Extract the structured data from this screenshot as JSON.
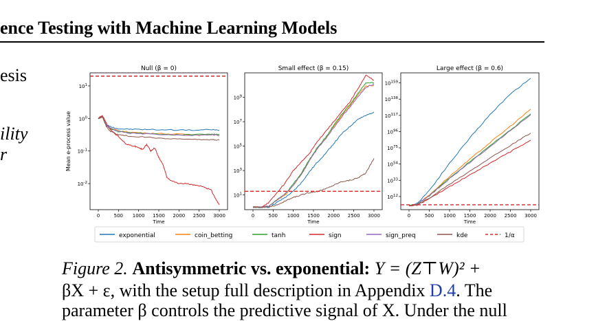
{
  "page": {
    "header_title": "ence Testing with Machine Learning Models",
    "left_margin_text": [
      "esis",
      "ility",
      "r"
    ]
  },
  "figure": {
    "legend": [
      {
        "label": "exponential",
        "color": "#1f77b4",
        "dash": false
      },
      {
        "label": "coin_betting",
        "color": "#ff7f0e",
        "dash": false
      },
      {
        "label": "tanh",
        "color": "#2ca02c",
        "dash": false
      },
      {
        "label": "sign",
        "color": "#d62728",
        "dash": false
      },
      {
        "label": "sign_preq",
        "color": "#9467bd",
        "dash": false
      },
      {
        "label": "kde",
        "color": "#8c564b",
        "dash": false
      },
      {
        "label": "1/α",
        "color": "#d62728",
        "dash": true
      }
    ],
    "ylabel": "Mean e-process value"
  },
  "chart_data": [
    {
      "type": "line",
      "title": "Null  (β = 0)",
      "xlabel": "Time",
      "ylabel": "Mean e-process value",
      "log_y": true,
      "xlim": [
        0,
        3000
      ],
      "ylim_log10": [
        -2.8,
        1.4
      ],
      "xticks": [
        0,
        500,
        1000,
        1500,
        2000,
        2500,
        3000
      ],
      "yticks": [
        {
          "v": 1,
          "label": "10^1"
        },
        {
          "v": 0,
          "label": "10^0"
        },
        {
          "v": -1,
          "label": "10^-1"
        },
        {
          "v": -2,
          "label": "10^-2"
        }
      ],
      "threshold_log10": 1.3,
      "series": [
        {
          "name": "exponential",
          "color": "#1f77b4",
          "x": [
            0,
            100,
            200,
            300,
            500,
            800,
            1200,
            1800,
            2400,
            2800,
            3000
          ],
          "y": [
            0,
            0.05,
            -0.2,
            -0.25,
            -0.32,
            -0.33,
            -0.34,
            -0.35,
            -0.36,
            -0.34,
            -0.37
          ]
        },
        {
          "name": "coin_betting",
          "color": "#ff7f0e",
          "x": [
            0,
            100,
            200,
            300,
            500,
            800,
            1200,
            1800,
            2400,
            2800,
            3000
          ],
          "y": [
            0,
            0.05,
            -0.2,
            -0.3,
            -0.38,
            -0.42,
            -0.45,
            -0.48,
            -0.5,
            -0.49,
            -0.52
          ]
        },
        {
          "name": "tanh",
          "color": "#2ca02c",
          "x": [
            0,
            100,
            200,
            300,
            500,
            800,
            1200,
            1800,
            2400,
            2800,
            3000
          ],
          "y": [
            0,
            0.05,
            -0.22,
            -0.32,
            -0.4,
            -0.43,
            -0.46,
            -0.5,
            -0.49,
            -0.48,
            -0.5
          ]
        },
        {
          "name": "sign",
          "color": "#d62728",
          "x": [
            0,
            100,
            200,
            300,
            500,
            700,
            900,
            1000,
            1100,
            1200,
            1300,
            1400,
            1500,
            1600,
            1700,
            1800,
            2000,
            2200,
            2400,
            2600,
            2800,
            2900,
            3000
          ],
          "y": [
            0,
            0.1,
            -0.15,
            -0.35,
            -0.55,
            -0.8,
            -0.85,
            -0.9,
            -0.95,
            -0.8,
            -1.0,
            -0.9,
            -1.2,
            -1.4,
            -1.8,
            -1.9,
            -2.0,
            -2.0,
            -2.05,
            -2.1,
            -2.2,
            -2.45,
            -2.65
          ]
        },
        {
          "name": "sign_preq",
          "color": "#9467bd",
          "x": [
            0,
            100,
            200,
            300,
            500,
            800,
            1200,
            1800,
            2400,
            2800,
            3000
          ],
          "y": [
            0,
            0.05,
            -0.2,
            -0.3,
            -0.4,
            -0.45,
            -0.47,
            -0.5,
            -0.52,
            -0.5,
            -0.52
          ]
        },
        {
          "name": "kde",
          "color": "#8c564b",
          "x": [
            0,
            100,
            200,
            300,
            500,
            800,
            1200,
            1800,
            2400,
            2800,
            3000
          ],
          "y": [
            0,
            0.05,
            -0.25,
            -0.4,
            -0.5,
            -0.55,
            -0.58,
            -0.62,
            -0.65,
            -0.65,
            -0.66
          ]
        }
      ]
    },
    {
      "type": "line",
      "title": "Small effect  (β = 0.15)",
      "xlabel": "Time",
      "log_y": true,
      "xlim": [
        0,
        3000
      ],
      "ylim_log10": [
        -0.2,
        11
      ],
      "xticks": [
        0,
        500,
        1000,
        1500,
        2000,
        2500,
        3000
      ],
      "yticks": [
        {
          "v": 9,
          "label": "10^9"
        },
        {
          "v": 7,
          "label": "10^7"
        },
        {
          "v": 5,
          "label": "10^5"
        },
        {
          "v": 3,
          "label": "10^3"
        },
        {
          "v": 1,
          "label": "10^1"
        }
      ],
      "threshold_log10": 1.3,
      "series": [
        {
          "name": "exponential",
          "color": "#1f77b4",
          "x": [
            0,
            200,
            400,
            600,
            800,
            1000,
            1200,
            1400,
            1600,
            1800,
            2000,
            2200,
            2400,
            2600,
            2800,
            3000
          ],
          "y": [
            0,
            0,
            0,
            0.4,
            0.8,
            1.3,
            2.0,
            2.9,
            3.7,
            4.4,
            5.2,
            6.0,
            6.6,
            7.2,
            7.5,
            7.8
          ]
        },
        {
          "name": "coin_betting",
          "color": "#ff7f0e",
          "x": [
            0,
            200,
            400,
            600,
            800,
            1000,
            1200,
            1400,
            1600,
            1800,
            2000,
            2200,
            2400,
            2600,
            2800,
            3000
          ],
          "y": [
            0,
            0,
            0.1,
            0.6,
            1.0,
            1.8,
            2.7,
            3.9,
            4.8,
            5.6,
            6.6,
            7.5,
            8.3,
            9.2,
            9.9,
            10.0
          ]
        },
        {
          "name": "tanh",
          "color": "#2ca02c",
          "x": [
            0,
            200,
            400,
            600,
            800,
            1000,
            1200,
            1400,
            1600,
            1800,
            2000,
            2200,
            2400,
            2600,
            2800,
            3000
          ],
          "y": [
            0,
            0,
            0.1,
            0.6,
            1.1,
            1.9,
            2.8,
            3.9,
            4.9,
            5.7,
            6.7,
            7.6,
            8.4,
            9.3,
            10.2,
            10.2
          ]
        },
        {
          "name": "sign",
          "color": "#d62728",
          "x": [
            0,
            200,
            400,
            600,
            800,
            1000,
            1200,
            1400,
            1600,
            1800,
            2000,
            2200,
            2400,
            2600,
            2800,
            3000
          ],
          "y": [
            0,
            0,
            0.4,
            1.2,
            2.0,
            3.0,
            3.7,
            4.4,
            5.4,
            6.2,
            7.0,
            7.8,
            8.6,
            9.7,
            10.8,
            10.4
          ]
        },
        {
          "name": "sign_preq",
          "color": "#9467bd",
          "x": [
            0,
            200,
            400,
            600,
            800,
            1000,
            1200,
            1400,
            1600,
            1800,
            2000,
            2200,
            2400,
            2600,
            2800,
            3000
          ],
          "y": [
            0,
            0,
            0.1,
            0.6,
            1.1,
            1.8,
            2.7,
            3.8,
            4.8,
            5.6,
            6.5,
            7.4,
            8.2,
            9.0,
            9.8,
            10.1
          ]
        },
        {
          "name": "kde",
          "color": "#8c564b",
          "x": [
            0,
            200,
            400,
            600,
            800,
            1000,
            1200,
            1400,
            1600,
            1800,
            2000,
            2200,
            2400,
            2600,
            2800,
            3000
          ],
          "y": [
            0,
            0,
            0,
            0.2,
            0.5,
            0.8,
            1.0,
            1.2,
            1.3,
            1.5,
            1.8,
            2.1,
            2.2,
            2.4,
            2.8,
            4.0
          ]
        }
      ]
    },
    {
      "type": "line",
      "title": "Large effect  (β = 0.6)",
      "xlabel": "Time",
      "log_y": true,
      "xlim": [
        0,
        3000
      ],
      "ylim_log10": [
        -5,
        172
      ],
      "xticks": [
        0,
        500,
        1000,
        1500,
        2000,
        2500,
        3000
      ],
      "yticks": [
        {
          "v": 159,
          "label": "10^159"
        },
        {
          "v": 138,
          "label": "10^138"
        },
        {
          "v": 117,
          "label": "10^117"
        },
        {
          "v": 96,
          "label": "10^96"
        },
        {
          "v": 75,
          "label": "10^75"
        },
        {
          "v": 54,
          "label": "10^54"
        },
        {
          "v": 33,
          "label": "10^33"
        },
        {
          "v": 12,
          "label": "10^12"
        }
      ],
      "threshold_log10": 1.3,
      "series": [
        {
          "name": "exponential",
          "color": "#1f77b4",
          "x": [
            0,
            200,
            500,
            1000,
            1500,
            2000,
            2500,
            3000
          ],
          "y": [
            0,
            3,
            20,
            55,
            88,
            118,
            145,
            165
          ]
        },
        {
          "name": "coin_betting",
          "color": "#ff7f0e",
          "x": [
            0,
            200,
            500,
            1000,
            1500,
            2000,
            2500,
            3000
          ],
          "y": [
            0,
            2,
            14,
            38,
            60,
            82,
            103,
            125
          ]
        },
        {
          "name": "tanh",
          "color": "#2ca02c",
          "x": [
            0,
            200,
            500,
            1000,
            1500,
            2000,
            2500,
            3000
          ],
          "y": [
            0,
            2,
            13,
            36,
            57,
            78,
            98,
            119
          ]
        },
        {
          "name": "sign",
          "color": "#d62728",
          "x": [
            0,
            200,
            500,
            1000,
            1500,
            2000,
            2500,
            3000
          ],
          "y": [
            0,
            1,
            9,
            25,
            40,
            55,
            70,
            85
          ]
        },
        {
          "name": "sign_preq",
          "color": "#9467bd",
          "x": [
            0,
            200,
            500,
            1000,
            1500,
            2000,
            2500,
            3000
          ],
          "y": [
            0,
            2,
            13,
            35,
            56,
            77,
            97,
            118
          ]
        },
        {
          "name": "kde",
          "color": "#8c564b",
          "x": [
            0,
            200,
            500,
            1000,
            1500,
            2000,
            2500,
            3000
          ],
          "y": [
            0,
            1,
            10,
            28,
            45,
            62,
            78,
            94
          ]
        }
      ]
    }
  ],
  "caption": {
    "label": "Figure 2.",
    "bold": "Antisymmetric vs. exponential:",
    "formula1": "Y = (Z⊤W)² +",
    "line2_pre": "βX + ε, with the setup full description in Appendix",
    "link": "D.4",
    "line2_post": ". The",
    "cut_line": "parameter β controls the predictive signal of X. Under the null"
  }
}
